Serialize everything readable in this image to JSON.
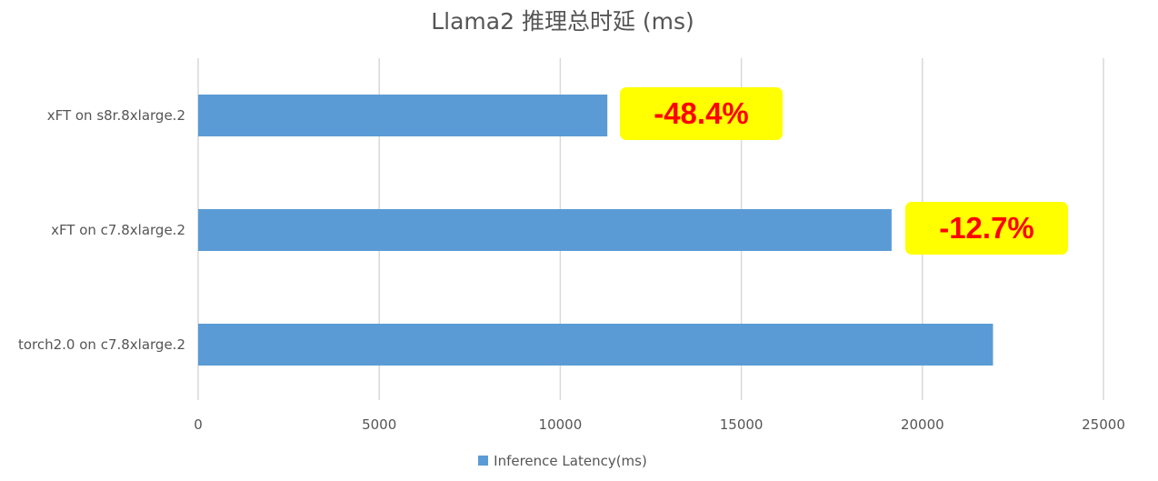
{
  "chart_data": {
    "type": "bar",
    "orientation": "horizontal",
    "title": "Llama2 推理总时延 (ms)",
    "categories": [
      "xFT on s8r.8xlarge.2",
      "xFT on c7.8xlarge.2",
      "torch2.0 on c7.8xlarge.2"
    ],
    "series": [
      {
        "name": "Inference Latency(ms)",
        "values": [
          11300,
          19150,
          21950
        ],
        "color": "#5b9bd5"
      }
    ],
    "xlim": [
      0,
      25000
    ],
    "xticks": [
      0,
      5000,
      10000,
      15000,
      20000,
      25000
    ],
    "grid": true,
    "legend_position": "bottom",
    "annotations": [
      "-48.4%",
      "-12.7%"
    ]
  },
  "annotation_style": {
    "background": "#ffff00",
    "text_color": "#ff0000"
  }
}
